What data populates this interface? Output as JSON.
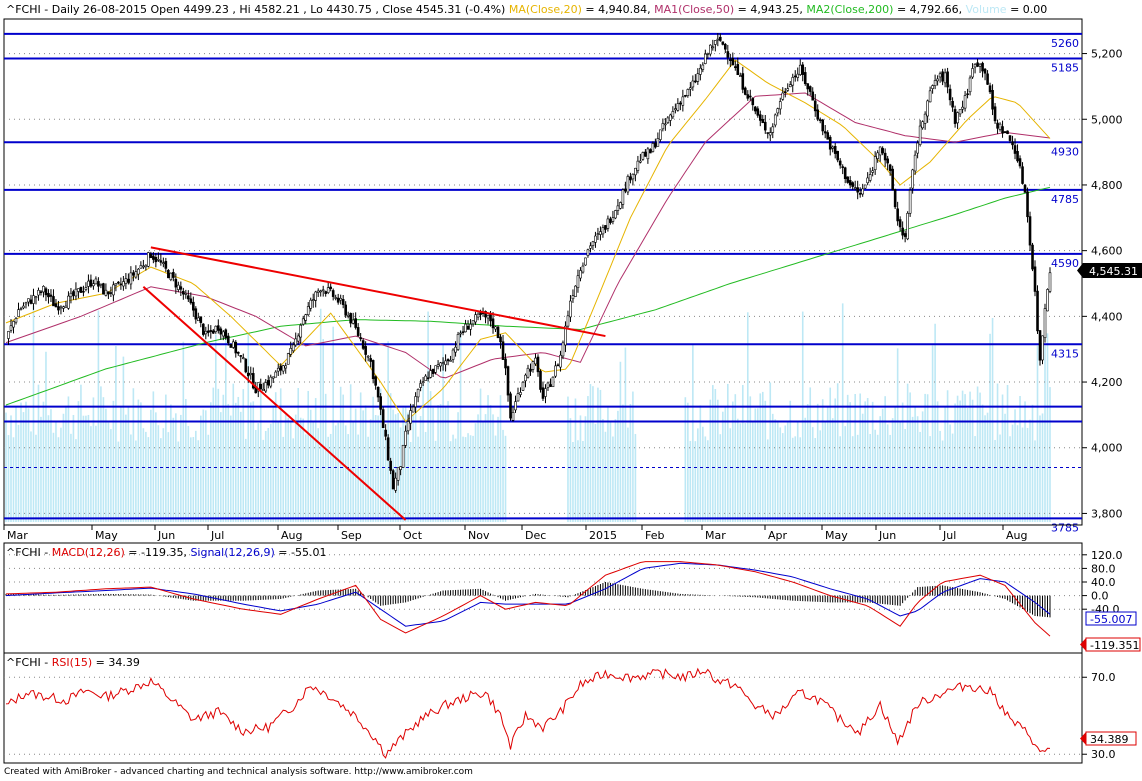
{
  "header": {
    "symbol": "^FCHI",
    "period": "Daily 26-08-2015",
    "open_label": "Open",
    "open": "4499.23",
    "high_label": "Hi",
    "high": "4582.21",
    "low_label": "Lo",
    "low": "4430.75",
    "close_label": "Close",
    "close": "4545.31",
    "change": "(-0.4%)",
    "ma20_label": "MA(Close,20)",
    "ma20_value": "= 4,940.84,",
    "ma50_label": "MA1(Close,50)",
    "ma50_value": "= 4,943.25,",
    "ma200_label": "MA2(Close,200)",
    "ma200_value": "= 4,792.66,",
    "volume_label": "Volume",
    "volume_value": "= 0.00"
  },
  "colors": {
    "ma20": "#e6b400",
    "ma50": "#b0306a",
    "ma200": "#22bb22",
    "levels": "#0000cc",
    "trend": "#ee0000",
    "volume": "#bde8f5",
    "macd": "#dd0000",
    "signal": "#0000cc",
    "rsi": "#dd0000"
  },
  "chart_data": [
    {
      "type": "candlestick",
      "ylim": [
        3780,
        5290
      ],
      "y_ticks": [
        "5,200",
        "5,000",
        "4,800",
        "4,600",
        "4,400",
        "4,200",
        "4,000",
        "3,800"
      ],
      "y_tick_values": [
        5200,
        5000,
        4800,
        4600,
        4400,
        4200,
        4000,
        3800
      ],
      "x_ticks": [
        "Mar",
        "May",
        "Jun",
        "Jul",
        "Aug",
        "Sep",
        "Oct",
        "Nov",
        "Dec",
        "2015",
        "Feb",
        "Mar",
        "Apr",
        "May",
        "Jun",
        "Jul",
        "Aug"
      ],
      "last_price": "4,545.31",
      "levels": [
        {
          "value": 5260,
          "label": "5260"
        },
        {
          "value": 5185,
          "label": "5185"
        },
        {
          "value": 4930,
          "label": "4930"
        },
        {
          "value": 4785,
          "label": "4785"
        },
        {
          "value": 4590,
          "label": "4590"
        },
        {
          "value": 4315,
          "label": "4315"
        },
        {
          "value": 4125,
          "label": ""
        },
        {
          "value": 4080,
          "label": ""
        },
        {
          "value": 3785,
          "label": "3785"
        }
      ],
      "dashed_level": 3940,
      "close_path": [
        [
          0,
          4330
        ],
        [
          5,
          4420
        ],
        [
          10,
          4450
        ],
        [
          15,
          4480
        ],
        [
          20,
          4430
        ],
        [
          25,
          4450
        ],
        [
          30,
          4480
        ],
        [
          35,
          4510
        ],
        [
          40,
          4470
        ],
        [
          45,
          4490
        ],
        [
          50,
          4520
        ],
        [
          55,
          4560
        ],
        [
          58,
          4590
        ],
        [
          62,
          4560
        ],
        [
          66,
          4520
        ],
        [
          70,
          4480
        ],
        [
          75,
          4420
        ],
        [
          80,
          4340
        ],
        [
          85,
          4370
        ],
        [
          90,
          4320
        ],
        [
          95,
          4260
        ],
        [
          100,
          4180
        ],
        [
          105,
          4200
        ],
        [
          110,
          4240
        ],
        [
          115,
          4300
        ],
        [
          118,
          4380
        ],
        [
          122,
          4440
        ],
        [
          126,
          4490
        ],
        [
          130,
          4470
        ],
        [
          134,
          4440
        ],
        [
          138,
          4390
        ],
        [
          142,
          4330
        ],
        [
          146,
          4260
        ],
        [
          149,
          4150
        ],
        [
          152,
          4020
        ],
        [
          155,
          3880
        ],
        [
          158,
          3950
        ],
        [
          161,
          4080
        ],
        [
          164,
          4150
        ],
        [
          167,
          4200
        ],
        [
          170,
          4230
        ],
        [
          174,
          4250
        ],
        [
          178,
          4280
        ],
        [
          182,
          4350
        ],
        [
          186,
          4380
        ],
        [
          190,
          4400
        ],
        [
          194,
          4390
        ],
        [
          198,
          4330
        ],
        [
          200,
          4230
        ],
        [
          202,
          4090
        ],
        [
          205,
          4160
        ],
        [
          208,
          4230
        ],
        [
          212,
          4260
        ],
        [
          215,
          4150
        ],
        [
          218,
          4200
        ],
        [
          222,
          4280
        ],
        [
          226,
          4450
        ],
        [
          230,
          4550
        ],
        [
          234,
          4620
        ],
        [
          238,
          4650
        ],
        [
          242,
          4700
        ],
        [
          246,
          4760
        ],
        [
          250,
          4830
        ],
        [
          254,
          4880
        ],
        [
          258,
          4900
        ],
        [
          262,
          4960
        ],
        [
          266,
          5010
        ],
        [
          270,
          5060
        ],
        [
          274,
          5090
        ],
        [
          278,
          5150
        ],
        [
          282,
          5220
        ],
        [
          286,
          5240
        ],
        [
          290,
          5190
        ],
        [
          294,
          5120
        ],
        [
          298,
          5060
        ],
        [
          302,
          4990
        ],
        [
          306,
          4960
        ],
        [
          310,
          5060
        ],
        [
          314,
          5120
        ],
        [
          318,
          5150
        ],
        [
          322,
          5080
        ],
        [
          326,
          4990
        ],
        [
          330,
          4920
        ],
        [
          334,
          4860
        ],
        [
          338,
          4800
        ],
        [
          342,
          4770
        ],
        [
          346,
          4830
        ],
        [
          350,
          4930
        ],
        [
          354,
          4830
        ],
        [
          357,
          4690
        ],
        [
          360,
          4640
        ],
        [
          364,
          4900
        ],
        [
          368,
          5030
        ],
        [
          372,
          5120
        ],
        [
          376,
          5130
        ],
        [
          380,
          5000
        ],
        [
          384,
          5060
        ],
        [
          388,
          5180
        ],
        [
          392,
          5150
        ],
        [
          396,
          4990
        ],
        [
          400,
          4960
        ],
        [
          404,
          4910
        ],
        [
          408,
          4780
        ],
        [
          410,
          4630
        ],
        [
          412,
          4470
        ],
        [
          414,
          4260
        ],
        [
          416,
          4430
        ],
        [
          418,
          4545
        ]
      ],
      "ma20_path": [
        [
          0,
          4380
        ],
        [
          20,
          4440
        ],
        [
          40,
          4470
        ],
        [
          58,
          4550
        ],
        [
          75,
          4500
        ],
        [
          90,
          4400
        ],
        [
          110,
          4250
        ],
        [
          130,
          4410
        ],
        [
          150,
          4200
        ],
        [
          160,
          4080
        ],
        [
          175,
          4180
        ],
        [
          190,
          4330
        ],
        [
          200,
          4350
        ],
        [
          215,
          4230
        ],
        [
          225,
          4240
        ],
        [
          235,
          4420
        ],
        [
          250,
          4700
        ],
        [
          265,
          4920
        ],
        [
          280,
          5060
        ],
        [
          292,
          5180
        ],
        [
          305,
          5110
        ],
        [
          320,
          5050
        ],
        [
          335,
          4980
        ],
        [
          350,
          4870
        ],
        [
          358,
          4800
        ],
        [
          370,
          4870
        ],
        [
          385,
          5000
        ],
        [
          395,
          5070
        ],
        [
          405,
          5050
        ],
        [
          418,
          4941
        ]
      ],
      "ma50_path": [
        [
          0,
          4320
        ],
        [
          30,
          4400
        ],
        [
          58,
          4490
        ],
        [
          80,
          4460
        ],
        [
          100,
          4400
        ],
        [
          120,
          4310
        ],
        [
          140,
          4340
        ],
        [
          160,
          4290
        ],
        [
          175,
          4210
        ],
        [
          195,
          4270
        ],
        [
          215,
          4290
        ],
        [
          230,
          4260
        ],
        [
          245,
          4500
        ],
        [
          265,
          4760
        ],
        [
          280,
          4930
        ],
        [
          300,
          5070
        ],
        [
          320,
          5080
        ],
        [
          340,
          4990
        ],
        [
          360,
          4950
        ],
        [
          380,
          4930
        ],
        [
          400,
          4960
        ],
        [
          418,
          4943
        ]
      ],
      "ma200_path": [
        [
          0,
          4130
        ],
        [
          40,
          4240
        ],
        [
          80,
          4320
        ],
        [
          110,
          4370
        ],
        [
          140,
          4390
        ],
        [
          170,
          4385
        ],
        [
          200,
          4370
        ],
        [
          230,
          4360
        ],
        [
          260,
          4420
        ],
        [
          290,
          4500
        ],
        [
          320,
          4570
        ],
        [
          350,
          4640
        ],
        [
          380,
          4710
        ],
        [
          400,
          4760
        ],
        [
          418,
          4793
        ]
      ],
      "trendlines": [
        {
          "from": [
            58,
            4610
          ],
          "to": [
            240,
            4340
          ]
        },
        {
          "from": [
            55,
            4490
          ],
          "to": [
            160,
            3780
          ]
        }
      ]
    },
    {
      "type": "line",
      "title": "^FCHI - MACD(12,26) = -119.35, Signal(12,26,9) = -55.01",
      "macd_label": "MACD(12,26)",
      "macd_value": "= -119.35,",
      "signal_label": "Signal(12,26,9)",
      "signal_value": "= -55.01",
      "ylim": [
        -160,
        140
      ],
      "y_ticks": [
        "120.0",
        "80.0",
        "40.0",
        "0.0",
        "-40.0"
      ],
      "y_tick_values": [
        120,
        80,
        40,
        0,
        -40
      ],
      "last_signal": "-55.007",
      "last_macd": "-119.351",
      "macd_path": [
        [
          0,
          5
        ],
        [
          20,
          10
        ],
        [
          40,
          20
        ],
        [
          58,
          25
        ],
        [
          75,
          -10
        ],
        [
          95,
          -40
        ],
        [
          110,
          -55
        ],
        [
          125,
          -10
        ],
        [
          140,
          30
        ],
        [
          150,
          -70
        ],
        [
          160,
          -110
        ],
        [
          175,
          -60
        ],
        [
          190,
          0
        ],
        [
          200,
          -40
        ],
        [
          212,
          -20
        ],
        [
          225,
          -30
        ],
        [
          240,
          60
        ],
        [
          255,
          100
        ],
        [
          270,
          100
        ],
        [
          285,
          90
        ],
        [
          300,
          70
        ],
        [
          315,
          40
        ],
        [
          330,
          0
        ],
        [
          345,
          -30
        ],
        [
          358,
          -90
        ],
        [
          365,
          -20
        ],
        [
          375,
          40
        ],
        [
          390,
          60
        ],
        [
          400,
          30
        ],
        [
          412,
          -80
        ],
        [
          418,
          -119
        ]
      ],
      "signal_path": [
        [
          0,
          0
        ],
        [
          20,
          8
        ],
        [
          40,
          15
        ],
        [
          58,
          22
        ],
        [
          75,
          5
        ],
        [
          95,
          -25
        ],
        [
          110,
          -45
        ],
        [
          125,
          -25
        ],
        [
          140,
          10
        ],
        [
          150,
          -40
        ],
        [
          160,
          -90
        ],
        [
          175,
          -75
        ],
        [
          190,
          -20
        ],
        [
          200,
          -25
        ],
        [
          212,
          -25
        ],
        [
          225,
          -25
        ],
        [
          240,
          20
        ],
        [
          255,
          80
        ],
        [
          270,
          95
        ],
        [
          285,
          90
        ],
        [
          300,
          75
        ],
        [
          315,
          55
        ],
        [
          330,
          20
        ],
        [
          345,
          -10
        ],
        [
          358,
          -60
        ],
        [
          365,
          -45
        ],
        [
          375,
          10
        ],
        [
          390,
          50
        ],
        [
          400,
          40
        ],
        [
          412,
          -20
        ],
        [
          418,
          -55
        ]
      ]
    },
    {
      "type": "line",
      "title": "^FCHI - RSI(15) = 34.39",
      "rsi_label": "RSI(15)",
      "rsi_value": "= 34.39",
      "ylim": [
        27,
        80
      ],
      "y_ticks": [
        "70.0",
        "30.0"
      ],
      "y_tick_values": [
        70,
        30
      ],
      "last_value": "34.389",
      "rsi_path": [
        [
          0,
          55
        ],
        [
          8,
          62
        ],
        [
          16,
          60
        ],
        [
          24,
          58
        ],
        [
          32,
          63
        ],
        [
          40,
          60
        ],
        [
          50,
          64
        ],
        [
          58,
          68
        ],
        [
          65,
          60
        ],
        [
          75,
          48
        ],
        [
          85,
          52
        ],
        [
          95,
          42
        ],
        [
          105,
          44
        ],
        [
          115,
          55
        ],
        [
          122,
          66
        ],
        [
          130,
          60
        ],
        [
          140,
          50
        ],
        [
          148,
          38
        ],
        [
          152,
          30
        ],
        [
          158,
          38
        ],
        [
          166,
          48
        ],
        [
          175,
          55
        ],
        [
          185,
          60
        ],
        [
          192,
          62
        ],
        [
          198,
          50
        ],
        [
          202,
          34
        ],
        [
          208,
          50
        ],
        [
          215,
          44
        ],
        [
          222,
          52
        ],
        [
          230,
          66
        ],
        [
          240,
          72
        ],
        [
          250,
          70
        ],
        [
          262,
          72
        ],
        [
          272,
          70
        ],
        [
          280,
          74
        ],
        [
          285,
          68
        ],
        [
          292,
          66
        ],
        [
          300,
          55
        ],
        [
          308,
          50
        ],
        [
          318,
          62
        ],
        [
          326,
          58
        ],
        [
          334,
          48
        ],
        [
          342,
          42
        ],
        [
          350,
          56
        ],
        [
          357,
          36
        ],
        [
          365,
          56
        ],
        [
          375,
          62
        ],
        [
          385,
          66
        ],
        [
          395,
          62
        ],
        [
          402,
          48
        ],
        [
          410,
          40
        ],
        [
          414,
          30
        ],
        [
          418,
          34
        ]
      ]
    }
  ],
  "footer": "Created with AmiBroker - advanced charting and technical analysis software. http://www.amibroker.com"
}
